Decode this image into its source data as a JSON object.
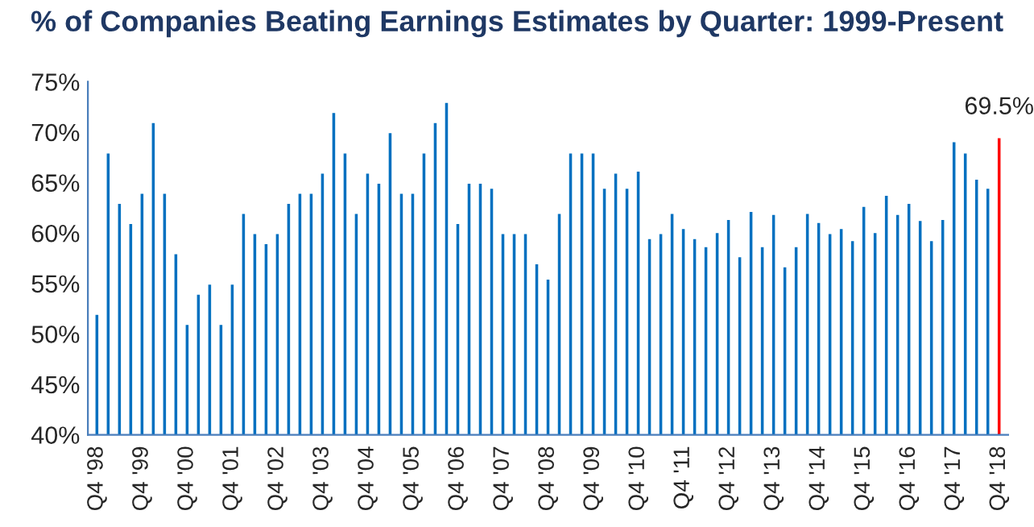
{
  "chart_data": {
    "type": "bar",
    "title": "% of Companies Beating Earnings Estimates by Quarter: 1999-Present",
    "categories": [
      "Q4 '98",
      null,
      null,
      null,
      "Q4 '99",
      null,
      null,
      null,
      "Q4 '00",
      null,
      null,
      null,
      "Q4 '01",
      null,
      null,
      null,
      "Q4 '02",
      null,
      null,
      null,
      "Q4 '03",
      null,
      null,
      null,
      "Q4 '04",
      null,
      null,
      null,
      "Q4 '05",
      null,
      null,
      null,
      "Q4 '06",
      null,
      null,
      null,
      "Q4 '07",
      null,
      null,
      null,
      "Q4 '08",
      null,
      null,
      null,
      "Q4 '09",
      null,
      null,
      null,
      "Q4 '10",
      null,
      null,
      null,
      "Q4 '11",
      null,
      null,
      null,
      "Q4 '12",
      null,
      null,
      null,
      "Q4 '13",
      null,
      null,
      null,
      "Q4 '14",
      null,
      null,
      null,
      "Q4 '15",
      null,
      null,
      null,
      "Q4 '16",
      null,
      null,
      null,
      "Q4 '17",
      null,
      null,
      null,
      "Q4 '18"
    ],
    "values": [
      52,
      68,
      63,
      61,
      64,
      71,
      64,
      58,
      51,
      54,
      55,
      51,
      55,
      62,
      60,
      59,
      60,
      63,
      64,
      64,
      66,
      72,
      68,
      62,
      66,
      65,
      70,
      64,
      64,
      68,
      71,
      73,
      61,
      65,
      65,
      64.5,
      60,
      60,
      60,
      57,
      55.5,
      62,
      68,
      68,
      68,
      64.5,
      66,
      64.5,
      66.2,
      59.5,
      60,
      62,
      60.5,
      59.5,
      58.7,
      60.1,
      61.4,
      57.7,
      62.2,
      58.7,
      61.9,
      56.7,
      58.7,
      62,
      61.1,
      60,
      60.5,
      59.3,
      62.7,
      60.1,
      63.8,
      61.9,
      63,
      61.3,
      59.3,
      61.4,
      69.1,
      68,
      65.4,
      64.5,
      69.5
    ],
    "colors": [
      "#0070c0",
      "#0070c0",
      "#0070c0",
      "#0070c0",
      "#0070c0",
      "#0070c0",
      "#0070c0",
      "#0070c0",
      "#0070c0",
      "#0070c0",
      "#0070c0",
      "#0070c0",
      "#0070c0",
      "#0070c0",
      "#0070c0",
      "#0070c0",
      "#0070c0",
      "#0070c0",
      "#0070c0",
      "#0070c0",
      "#0070c0",
      "#0070c0",
      "#0070c0",
      "#0070c0",
      "#0070c0",
      "#0070c0",
      "#0070c0",
      "#0070c0",
      "#0070c0",
      "#0070c0",
      "#0070c0",
      "#0070c0",
      "#0070c0",
      "#0070c0",
      "#0070c0",
      "#0070c0",
      "#0070c0",
      "#0070c0",
      "#0070c0",
      "#0070c0",
      "#0070c0",
      "#0070c0",
      "#0070c0",
      "#0070c0",
      "#0070c0",
      "#0070c0",
      "#0070c0",
      "#0070c0",
      "#0070c0",
      "#0070c0",
      "#0070c0",
      "#0070c0",
      "#0070c0",
      "#0070c0",
      "#0070c0",
      "#0070c0",
      "#0070c0",
      "#0070c0",
      "#0070c0",
      "#0070c0",
      "#0070c0",
      "#0070c0",
      "#0070c0",
      "#0070c0",
      "#0070c0",
      "#0070c0",
      "#0070c0",
      "#0070c0",
      "#0070c0",
      "#0070c0",
      "#0070c0",
      "#0070c0",
      "#0070c0",
      "#0070c0",
      "#0070c0",
      "#0070c0",
      "#0070c0",
      "#0070c0",
      "#0070c0",
      "#0070c0",
      "#ff0000"
    ],
    "value_labels": [
      null,
      null,
      null,
      null,
      null,
      null,
      null,
      null,
      null,
      null,
      null,
      null,
      null,
      null,
      null,
      null,
      null,
      null,
      null,
      null,
      null,
      null,
      null,
      null,
      null,
      null,
      null,
      null,
      null,
      null,
      null,
      null,
      null,
      null,
      null,
      null,
      null,
      null,
      null,
      null,
      null,
      null,
      null,
      null,
      null,
      null,
      null,
      null,
      null,
      null,
      null,
      null,
      null,
      null,
      null,
      null,
      null,
      null,
      null,
      null,
      null,
      null,
      null,
      null,
      null,
      null,
      null,
      null,
      null,
      null,
      null,
      null,
      null,
      null,
      null,
      null,
      null,
      null,
      null,
      null,
      "69.5%"
    ],
    "ylim": [
      40,
      75
    ],
    "yticks": [
      {
        "value": 40,
        "label": "40%"
      },
      {
        "value": 45,
        "label": "45%"
      },
      {
        "value": 50,
        "label": "50%"
      },
      {
        "value": 55,
        "label": "55%"
      },
      {
        "value": 60,
        "label": "60%"
      },
      {
        "value": 65,
        "label": "65%"
      },
      {
        "value": 70,
        "label": "70%"
      },
      {
        "value": 75,
        "label": "75%"
      }
    ],
    "grid": false,
    "legend": false
  }
}
